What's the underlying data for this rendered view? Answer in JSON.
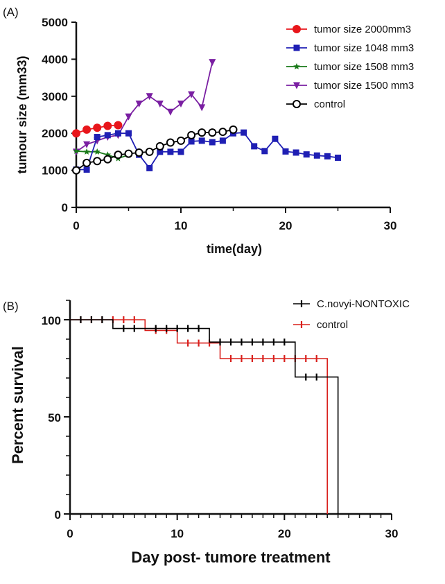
{
  "chart_data": [
    {
      "panel_label": "(A)",
      "type": "line",
      "xlabel": "time(day)",
      "ylabel": "tumour size (mm33)",
      "xlim": [
        0,
        30
      ],
      "ylim": [
        0,
        5000
      ],
      "xticks": [
        0,
        10,
        20,
        30
      ],
      "yticks": [
        0,
        1000,
        2000,
        3000,
        4000,
        5000
      ],
      "xtick_labels": [
        "0",
        "10",
        "20",
        "30"
      ],
      "ytick_labels": [
        "0",
        "1000",
        "2000",
        "3000",
        "4000",
        "5000"
      ],
      "legend_position": "top-right",
      "series": [
        {
          "name": "tumor size 2000mm3",
          "color": "#e8161b",
          "marker": "circle-filled",
          "x": [
            0,
            1,
            2,
            3,
            4
          ],
          "y": [
            2000,
            2100,
            2150,
            2200,
            2220
          ]
        },
        {
          "name": "tumor size 1048 mm3",
          "color": "#1f1fb4",
          "marker": "square",
          "x": [
            0,
            1,
            2,
            3,
            4,
            5,
            6,
            7,
            8,
            9,
            10,
            11,
            12,
            13,
            14,
            15,
            16,
            17,
            18,
            19,
            20,
            21,
            22,
            23,
            24,
            25
          ],
          "y": [
            1020,
            1020,
            1900,
            1950,
            2000,
            2000,
            1420,
            1060,
            1500,
            1500,
            1500,
            1780,
            1800,
            1760,
            1800,
            2000,
            2020,
            1650,
            1520,
            1850,
            1510,
            1480,
            1430,
            1400,
            1380,
            1340
          ]
        },
        {
          "name": "tumor size 1508 mm3",
          "color": "#1a7a1a",
          "marker": "star",
          "x": [
            0,
            1,
            2,
            3,
            4,
            5
          ],
          "y": [
            1520,
            1500,
            1500,
            1420,
            1320,
            1420
          ]
        },
        {
          "name": "tumor size 1500 mm3",
          "color": "#7a1fa2",
          "marker": "triangle-down",
          "x": [
            0,
            1,
            2,
            3,
            4,
            5,
            6,
            7,
            8,
            9,
            10,
            11,
            12,
            13
          ],
          "y": [
            1500,
            1700,
            1800,
            1900,
            1950,
            2450,
            2800,
            3000,
            2800,
            2580,
            2800,
            3050,
            2700,
            3920
          ]
        },
        {
          "name": "control",
          "color": "#000000",
          "marker": "circle-open",
          "x": [
            0,
            1,
            2,
            3,
            4,
            5,
            6,
            7,
            8,
            9,
            10,
            11,
            12,
            13,
            14,
            15
          ],
          "y": [
            1000,
            1200,
            1250,
            1300,
            1420,
            1450,
            1480,
            1500,
            1650,
            1750,
            1800,
            1950,
            2020,
            2020,
            2040,
            2100
          ]
        }
      ]
    },
    {
      "panel_label": "(B)",
      "type": "line",
      "subtype": "kaplan-meier",
      "xlabel": "Day post- tumore treatment",
      "ylabel": "Percent survival",
      "xlim": [
        0,
        30
      ],
      "ylim": [
        0,
        110
      ],
      "xticks": [
        0,
        10,
        20,
        30
      ],
      "yticks": [
        0,
        50,
        100
      ],
      "xtick_labels": [
        "0",
        "10",
        "20",
        "30"
      ],
      "ytick_labels": [
        "0",
        "50",
        "100"
      ],
      "legend_position": "top-right",
      "series": [
        {
          "name": "C.novyi-NONTOXIC",
          "color": "#000000",
          "steps": [
            [
              0,
              100
            ],
            [
              4,
              95.5
            ],
            [
              13,
              88.5
            ],
            [
              21,
              70.5
            ],
            [
              25,
              0
            ]
          ],
          "censored": [
            [
              1,
              100
            ],
            [
              2,
              100
            ],
            [
              3,
              100
            ],
            [
              5,
              95.5
            ],
            [
              6,
              95.5
            ],
            [
              8,
              95.5
            ],
            [
              9,
              95.5
            ],
            [
              10,
              95.5
            ],
            [
              11,
              95.5
            ],
            [
              12,
              95.5
            ],
            [
              14,
              88.5
            ],
            [
              15,
              88.5
            ],
            [
              16,
              88.5
            ],
            [
              17,
              88.5
            ],
            [
              18,
              88.5
            ],
            [
              19,
              88.5
            ],
            [
              20,
              88.5
            ],
            [
              22,
              70.5
            ],
            [
              23,
              70.5
            ]
          ]
        },
        {
          "name": "control",
          "color": "#d9201c",
          "steps": [
            [
              0,
              100
            ],
            [
              7,
              94.5
            ],
            [
              10,
              88
            ],
            [
              14,
              80
            ],
            [
              24,
              0
            ]
          ],
          "censored": [
            [
              1,
              100
            ],
            [
              2,
              100
            ],
            [
              3,
              100
            ],
            [
              4,
              100
            ],
            [
              5,
              100
            ],
            [
              6,
              100
            ],
            [
              8,
              94.5
            ],
            [
              9,
              94.5
            ],
            [
              11,
              88
            ],
            [
              12,
              88
            ],
            [
              13,
              88
            ],
            [
              15,
              80
            ],
            [
              16,
              80
            ],
            [
              17,
              80
            ],
            [
              18,
              80
            ],
            [
              19,
              80
            ],
            [
              20,
              80
            ],
            [
              21,
              80
            ],
            [
              22,
              80
            ],
            [
              23,
              80
            ]
          ]
        }
      ]
    }
  ]
}
